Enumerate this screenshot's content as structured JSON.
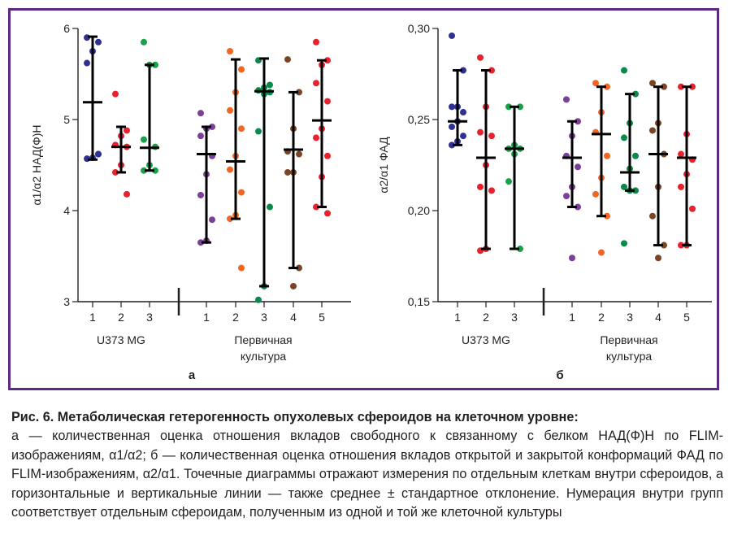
{
  "chart_data": [
    {
      "type": "scatter",
      "panel_label": "а",
      "ylabel": "α1/α2 НАД(Ф)Н",
      "ylim": [
        3,
        6
      ],
      "yticks": [
        "3",
        "4",
        "5",
        "6"
      ],
      "group_labels": [
        "U373 MG",
        "Первичная культура"
      ],
      "series": [
        {
          "name": "1",
          "group": 0,
          "color": "#2e3192",
          "mean": 5.19,
          "sd_low": 4.56,
          "sd_high": 5.91,
          "points": [
            5.9,
            5.85,
            5.75,
            5.62,
            4.62,
            4.58,
            4.57,
            4.62
          ]
        },
        {
          "name": "2",
          "group": 0,
          "color": "#e8212f",
          "mean": 4.7,
          "sd_low": 4.42,
          "sd_high": 4.92,
          "points": [
            5.28,
            4.88,
            4.82,
            4.72,
            4.7,
            4.5,
            4.42,
            4.18
          ]
        },
        {
          "name": "3",
          "group": 0,
          "color": "#18a14a",
          "mean": 4.69,
          "sd_low": 4.44,
          "sd_high": 5.6,
          "points": [
            5.85,
            5.6,
            5.6,
            4.78,
            4.7,
            4.5,
            4.44,
            4.44
          ]
        },
        {
          "name": "1",
          "group": 1,
          "color": "#7b3f98",
          "mean": 4.62,
          "sd_low": 3.65,
          "sd_high": 4.92,
          "points": [
            5.07,
            4.92,
            4.9,
            4.82,
            4.6,
            4.4,
            4.17,
            3.9,
            3.67,
            3.65
          ]
        },
        {
          "name": "2",
          "group": 1,
          "color": "#f26522",
          "mean": 4.54,
          "sd_low": 3.91,
          "sd_high": 5.66,
          "points": [
            5.75,
            5.55,
            5.3,
            5.1,
            4.9,
            4.6,
            4.45,
            4.2,
            3.95,
            3.91,
            3.37
          ]
        },
        {
          "name": "3",
          "group": 1,
          "color": "#0a8a4a",
          "mean": 5.31,
          "sd_low": 3.17,
          "sd_high": 5.67,
          "points": [
            5.65,
            5.38,
            5.35,
            5.32,
            5.3,
            5.28,
            4.87,
            4.04,
            3.17,
            3.02
          ]
        },
        {
          "name": "4",
          "group": 1,
          "color": "#7a4526",
          "mean": 4.67,
          "sd_low": 3.37,
          "sd_high": 5.3,
          "points": [
            5.66,
            5.3,
            4.9,
            4.65,
            4.62,
            4.42,
            4.42,
            3.37,
            3.17
          ]
        },
        {
          "name": "5",
          "group": 1,
          "color": "#e8212f",
          "mean": 4.99,
          "sd_low": 4.04,
          "sd_high": 5.65,
          "points": [
            5.85,
            5.65,
            5.6,
            5.4,
            5.2,
            4.9,
            4.8,
            4.6,
            4.37,
            4.04,
            3.97
          ]
        }
      ]
    },
    {
      "type": "scatter",
      "panel_label": "б",
      "ylabel": "α2/α1 ФАД",
      "ylim": [
        0.15,
        0.3
      ],
      "yticks": [
        "0,15",
        "0,20",
        "0,25",
        "0,30"
      ],
      "group_labels": [
        "U373 MG",
        "Первичная культура"
      ],
      "series": [
        {
          "name": "1",
          "group": 0,
          "color": "#2e3192",
          "mean": 0.249,
          "sd_low": 0.236,
          "sd_high": 0.277,
          "points": [
            0.296,
            0.277,
            0.257,
            0.257,
            0.254,
            0.249,
            0.246,
            0.241,
            0.238,
            0.236
          ]
        },
        {
          "name": "2",
          "group": 0,
          "color": "#e8212f",
          "mean": 0.229,
          "sd_low": 0.179,
          "sd_high": 0.277,
          "points": [
            0.284,
            0.277,
            0.257,
            0.243,
            0.241,
            0.225,
            0.213,
            0.211,
            0.179,
            0.178
          ]
        },
        {
          "name": "3",
          "group": 0,
          "color": "#18a14a",
          "mean": 0.234,
          "sd_low": 0.179,
          "sd_high": 0.257,
          "points": [
            0.257,
            0.257,
            0.236,
            0.234,
            0.234,
            0.231,
            0.216,
            0.179
          ]
        },
        {
          "name": "1",
          "group": 1,
          "color": "#7b3f98",
          "mean": 0.229,
          "sd_low": 0.202,
          "sd_high": 0.249,
          "points": [
            0.261,
            0.249,
            0.241,
            0.23,
            0.224,
            0.213,
            0.208,
            0.202,
            0.174
          ]
        },
        {
          "name": "2",
          "group": 1,
          "color": "#f26522",
          "mean": 0.242,
          "sd_low": 0.197,
          "sd_high": 0.268,
          "points": [
            0.27,
            0.268,
            0.254,
            0.243,
            0.23,
            0.218,
            0.209,
            0.197,
            0.177
          ]
        },
        {
          "name": "3",
          "group": 1,
          "color": "#0a8a4a",
          "mean": 0.221,
          "sd_low": 0.211,
          "sd_high": 0.264,
          "points": [
            0.277,
            0.264,
            0.248,
            0.24,
            0.23,
            0.223,
            0.213,
            0.211,
            0.211,
            0.182
          ]
        },
        {
          "name": "4",
          "group": 1,
          "color": "#7a4526",
          "mean": 0.231,
          "sd_low": 0.181,
          "sd_high": 0.268,
          "points": [
            0.27,
            0.268,
            0.248,
            0.244,
            0.231,
            0.213,
            0.197,
            0.181,
            0.174
          ]
        },
        {
          "name": "5",
          "group": 1,
          "color": "#e8212f",
          "mean": 0.229,
          "sd_low": 0.181,
          "sd_high": 0.268,
          "points": [
            0.268,
            0.268,
            0.242,
            0.231,
            0.228,
            0.22,
            0.213,
            0.201,
            0.181,
            0.181
          ]
        }
      ]
    }
  ],
  "caption": {
    "title": "Рис. 6. Метаболическая гетерогенность опухолевых сфероидов на клеточном уровне:",
    "text": "а — количественная оценка отношения вкладов свободного к связанному с белком НАД(Ф)Н по FLIM-изображениям, α1/α2; б — количественная оценка отношения вкладов открытой и закрытой конформаций ФАД по FLIM-изображениям, α2/α1. Точечные диаграммы отражают измерения по отдельным клеткам внутри сфероидов, а горизонтальные и вертикальные линии — также среднее ± стандартное отклонение. Нумерация внутри групп соответствует отдельным сфероидам, полученным из одной и той же клеточной культуры"
  }
}
